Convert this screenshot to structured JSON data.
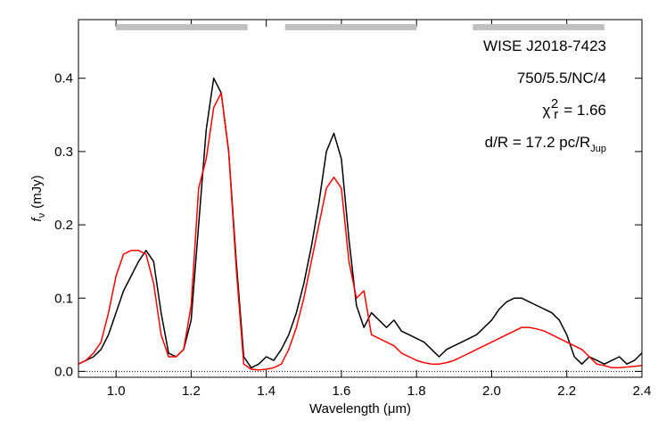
{
  "chart_data": {
    "type": "line",
    "xlabel": "Wavelength (μm)",
    "ylabel": {
      "text": "f",
      "sub": "ν",
      "after": "(mJy)"
    },
    "annotations": [
      {
        "color": "#000000",
        "text": "WISE J2018-7423"
      },
      {
        "color": "#ff0000",
        "text": "750/5.5/NC/4"
      },
      {
        "color": "#ff0000",
        "text": "χ",
        "sup": "2",
        "sub": "r",
        "after": "= 1.66"
      },
      {
        "color": "#ff0000",
        "text": "d/R = 17.2 pc/R",
        "sub": "Jup"
      }
    ],
    "xlim": [
      0.9,
      2.4
    ],
    "ylim": [
      -0.008,
      0.48
    ],
    "xticks": [
      {
        "value": 1,
        "label": "1.0"
      },
      1.2,
      1.4,
      1.6,
      1.8,
      {
        "value": 2,
        "label": "2.0"
      },
      2.2,
      2.4
    ],
    "yticks": [
      {
        "value": 0,
        "label": "0.0"
      },
      0.1,
      0.2,
      0.3,
      0.4
    ],
    "bands": [
      [
        1.0,
        1.35
      ],
      [
        1.45,
        1.8
      ],
      [
        1.95,
        2.3
      ]
    ],
    "band_color": "#c0c0c0",
    "x": [
      0.9,
      0.92,
      0.94,
      0.96,
      0.98,
      1.0,
      1.02,
      1.04,
      1.06,
      1.08,
      1.1,
      1.12,
      1.14,
      1.16,
      1.18,
      1.2,
      1.22,
      1.24,
      1.26,
      1.28,
      1.3,
      1.32,
      1.34,
      1.36,
      1.38,
      1.4,
      1.42,
      1.44,
      1.46,
      1.48,
      1.5,
      1.52,
      1.54,
      1.56,
      1.58,
      1.6,
      1.62,
      1.64,
      1.66,
      1.68,
      1.7,
      1.72,
      1.74,
      1.76,
      1.78,
      1.8,
      1.82,
      1.84,
      1.86,
      1.88,
      1.9,
      1.92,
      1.94,
      1.96,
      1.98,
      2.0,
      2.02,
      2.04,
      2.06,
      2.08,
      2.1,
      2.12,
      2.14,
      2.16,
      2.18,
      2.2,
      2.22,
      2.24,
      2.26,
      2.28,
      2.3,
      2.32,
      2.34,
      2.36,
      2.38,
      2.4
    ],
    "series": [
      {
        "color": "#000000",
        "values": [
          0.01,
          0.015,
          0.02,
          0.03,
          0.05,
          0.08,
          0.11,
          0.13,
          0.15,
          0.165,
          0.15,
          0.08,
          0.025,
          0.02,
          0.03,
          0.07,
          0.2,
          0.33,
          0.4,
          0.38,
          0.3,
          0.15,
          0.02,
          0.005,
          0.01,
          0.02,
          0.015,
          0.03,
          0.05,
          0.08,
          0.12,
          0.17,
          0.23,
          0.3,
          0.325,
          0.29,
          0.18,
          0.09,
          0.06,
          0.08,
          0.07,
          0.06,
          0.07,
          0.055,
          0.05,
          0.045,
          0.04,
          0.03,
          0.02,
          0.03,
          0.035,
          0.04,
          0.045,
          0.05,
          0.06,
          0.07,
          0.085,
          0.095,
          0.1,
          0.1,
          0.095,
          0.09,
          0.085,
          0.08,
          0.07,
          0.05,
          0.02,
          0.01,
          0.02,
          0.015,
          0.01,
          0.015,
          0.02,
          0.01,
          0.015,
          0.025
        ]
      },
      {
        "color": "#ff0000",
        "values": [
          0.01,
          0.015,
          0.025,
          0.04,
          0.08,
          0.13,
          0.16,
          0.165,
          0.165,
          0.16,
          0.12,
          0.05,
          0.02,
          0.02,
          0.03,
          0.09,
          0.25,
          0.29,
          0.36,
          0.38,
          0.3,
          0.14,
          0.01,
          0.003,
          0.002,
          0.003,
          0.005,
          0.01,
          0.03,
          0.06,
          0.1,
          0.15,
          0.2,
          0.25,
          0.265,
          0.25,
          0.15,
          0.1,
          0.11,
          0.05,
          0.045,
          0.04,
          0.035,
          0.025,
          0.02,
          0.015,
          0.012,
          0.01,
          0.01,
          0.012,
          0.015,
          0.02,
          0.025,
          0.03,
          0.035,
          0.04,
          0.045,
          0.05,
          0.055,
          0.06,
          0.06,
          0.058,
          0.055,
          0.05,
          0.045,
          0.04,
          0.035,
          0.03,
          0.02,
          0.01,
          0.008,
          0.005,
          0.005,
          0.006,
          0.007,
          0.008
        ]
      }
    ]
  }
}
